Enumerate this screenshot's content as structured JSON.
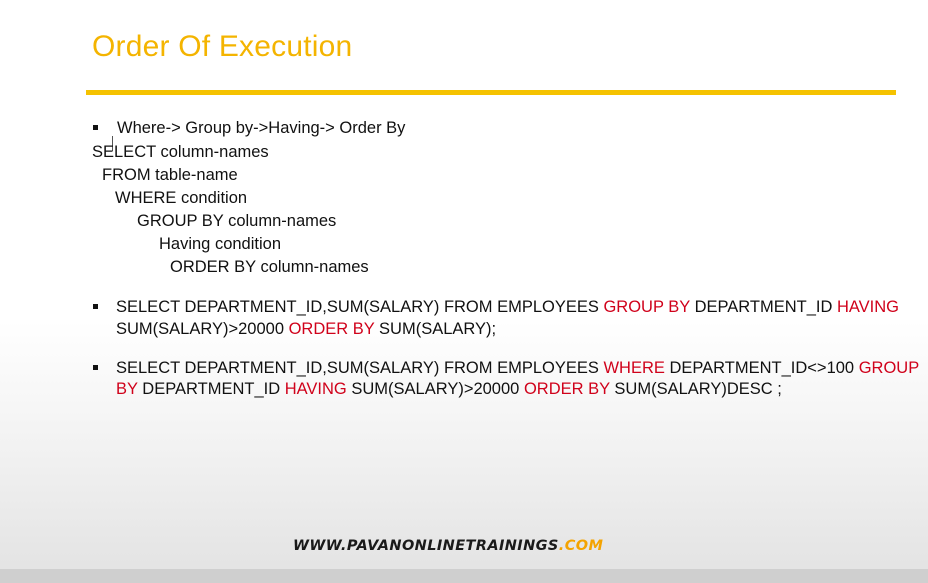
{
  "slide": {
    "title": "Order Of Execution",
    "bullet1": "Where-> Group by->Having-> Order By",
    "syntax": {
      "select": "SELECT column-names",
      "from": "FROM table-name",
      "where": "WHERE condition",
      "group_by": "GROUP BY column-names",
      "having": "Having condition",
      "order_by": "ORDER BY column-names"
    },
    "query1": {
      "p1": "SELECT DEPARTMENT_ID,SUM(SALARY) FROM EMPLOYEES ",
      "kw1": "GROUP BY",
      "p2": " DEPARTMENT_ID ",
      "kw2": "HAVING",
      "p3": "SUM(SALARY)>20000 ",
      "kw3": "ORDER BY",
      "p4": " SUM(SALARY);"
    },
    "query2": {
      "p1": "SELECT DEPARTMENT_ID,SUM(SALARY) FROM EMPLOYEES ",
      "kw1": "WHERE",
      "p2": " DEPARTMENT_ID<>100 ",
      "kw2a": "GROUP",
      "kw2b": "BY",
      "p3": " DEPARTMENT_ID ",
      "kw3": "HAVING",
      "p4": " SUM(SALARY)>20000 ",
      "kw4": "ORDER BY",
      "p5": " SUM(SALARY)DESC ;"
    },
    "footer": {
      "site": "WWW.PAVANONLINETRAININGS",
      "tld": ".COM"
    }
  },
  "colors": {
    "title": "#f4b400",
    "rule": "#f5c200",
    "keyword": "#d0021b",
    "footer_tld": "#f4a300"
  }
}
